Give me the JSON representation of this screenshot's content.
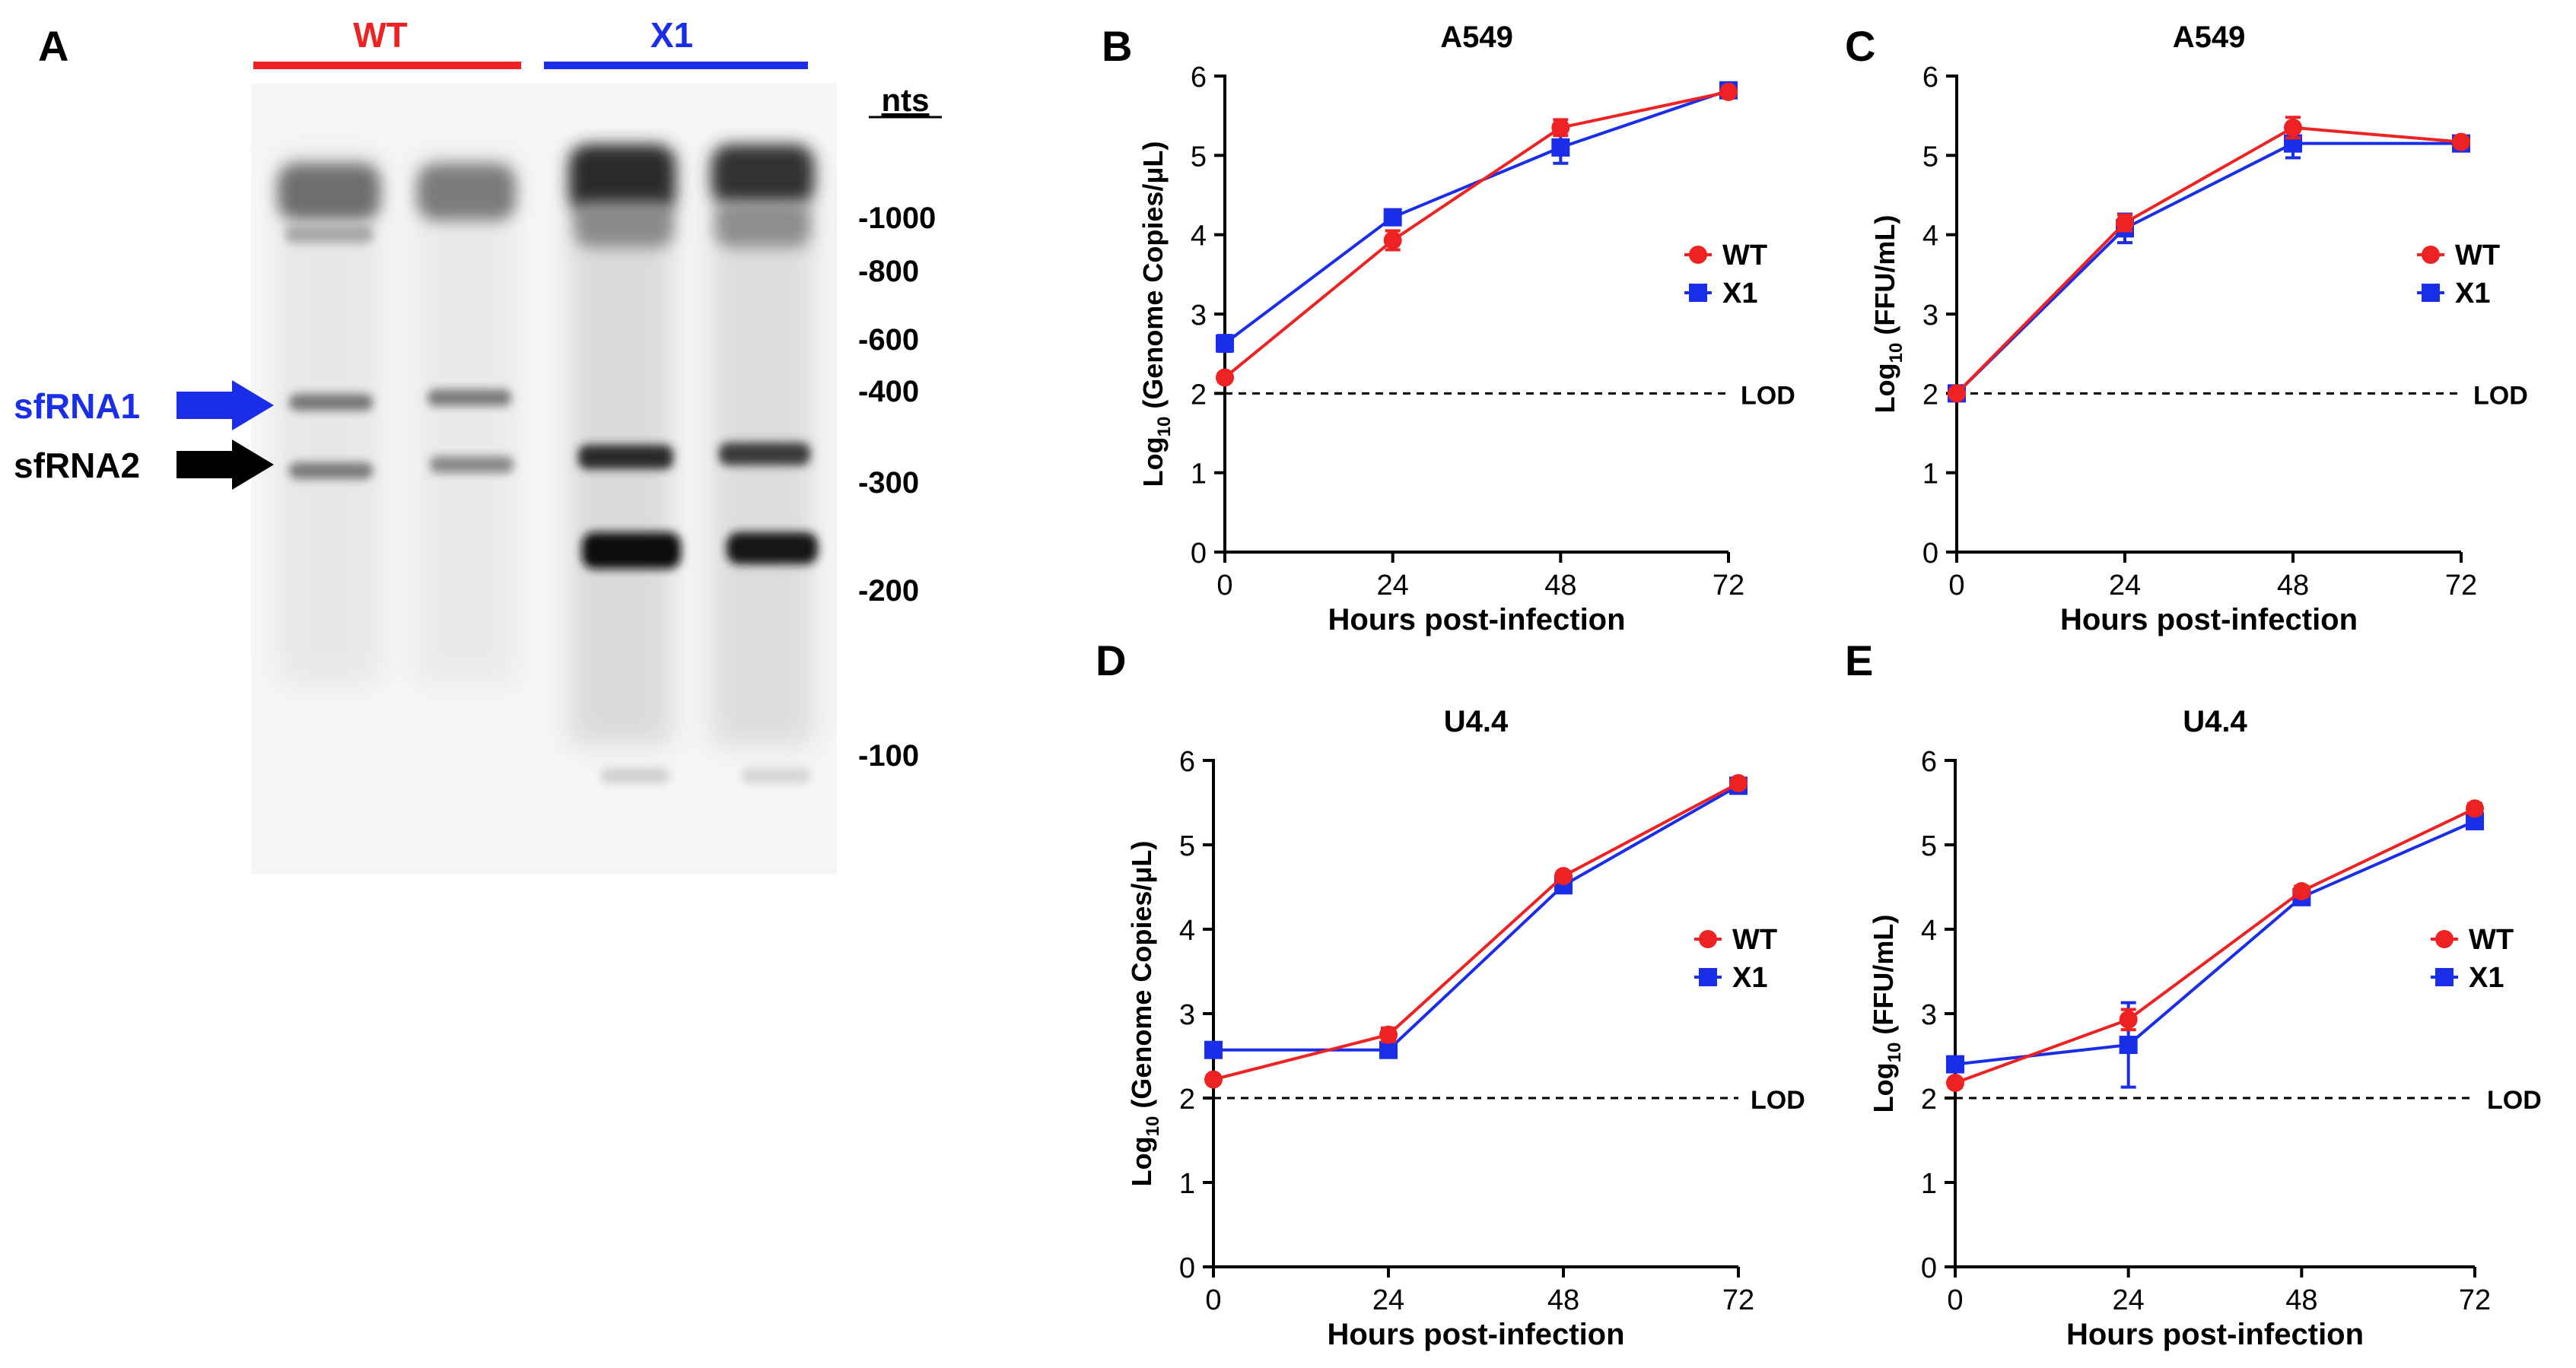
{
  "blot": {
    "panel_letter": "A",
    "group_labels": [
      {
        "text": "WT",
        "color": "#ee2222"
      },
      {
        "text": "X1",
        "color": "#1a2de8"
      }
    ],
    "size_header": "nts",
    "size_markers": [
      "-1000",
      "-800",
      "-600",
      "-400",
      "-300",
      "-200",
      "-100"
    ],
    "band_labels": [
      {
        "text": "sfRNA1",
        "color": "#1a2de8"
      },
      {
        "text": "sfRNA2",
        "color": "#000000"
      }
    ]
  },
  "chart_data": [
    {
      "panel_letter": "B",
      "type": "line",
      "title": "A549",
      "xlabel": "Hours post-infection",
      "ylabel_prefix": "Log",
      "ylabel_sub": "10",
      "ylabel_suffix": " (Genome Copies/μL)",
      "x": [
        0,
        24,
        48,
        72
      ],
      "xticks": [
        "0",
        "24",
        "48",
        "72"
      ],
      "yticks": [
        "0",
        "1",
        "2",
        "3",
        "4",
        "5",
        "6"
      ],
      "ylim": [
        0,
        6
      ],
      "lod": 2,
      "lod_label": "LOD",
      "legend_position": "right",
      "series": [
        {
          "name": "WT",
          "color": "#ee2222",
          "marker": "circle",
          "values": [
            2.2,
            3.93,
            5.35,
            5.8
          ],
          "errors": [
            0.05,
            0.12,
            0.1,
            0.04
          ]
        },
        {
          "name": "X1",
          "color": "#1a2de8",
          "marker": "square",
          "values": [
            2.63,
            4.22,
            5.1,
            5.82
          ],
          "errors": [
            0.1,
            0.06,
            0.2,
            0.06
          ]
        }
      ]
    },
    {
      "panel_letter": "C",
      "type": "line",
      "title": "A549",
      "xlabel": "Hours post-infection",
      "ylabel_prefix": "Log",
      "ylabel_sub": "10",
      "ylabel_suffix": " (FFU/mL)",
      "x": [
        0,
        24,
        48,
        72
      ],
      "xticks": [
        "0",
        "24",
        "48",
        "72"
      ],
      "yticks": [
        "0",
        "1",
        "2",
        "3",
        "4",
        "5",
        "6"
      ],
      "ylim": [
        0,
        6
      ],
      "lod": 2,
      "lod_label": "LOD",
      "legend_position": "right",
      "series": [
        {
          "name": "WT",
          "color": "#ee2222",
          "marker": "circle",
          "values": [
            2.0,
            4.15,
            5.35,
            5.17
          ],
          "errors": [
            0.02,
            0.1,
            0.13,
            0.05
          ]
        },
        {
          "name": "X1",
          "color": "#1a2de8",
          "marker": "square",
          "values": [
            2.0,
            4.08,
            5.15,
            5.15
          ],
          "errors": [
            0.02,
            0.18,
            0.18,
            0.05
          ]
        }
      ]
    },
    {
      "panel_letter": "D",
      "type": "line",
      "title": "U4.4",
      "xlabel": "Hours post-infection",
      "ylabel_prefix": "Log",
      "ylabel_sub": "10",
      "ylabel_suffix": " (Genome Copies/μL)",
      "x": [
        0,
        24,
        48,
        72
      ],
      "xticks": [
        "0",
        "24",
        "48",
        "72"
      ],
      "yticks": [
        "0",
        "1",
        "2",
        "3",
        "4",
        "5",
        "6"
      ],
      "ylim": [
        0,
        6
      ],
      "lod": 2,
      "lod_label": "LOD",
      "legend_position": "right",
      "series": [
        {
          "name": "WT",
          "color": "#ee2222",
          "marker": "circle",
          "values": [
            2.22,
            2.75,
            4.63,
            5.73
          ],
          "errors": [
            0.05,
            0.08,
            0.05,
            0.05
          ]
        },
        {
          "name": "X1",
          "color": "#1a2de8",
          "marker": "square",
          "values": [
            2.57,
            2.57,
            4.52,
            5.7
          ],
          "errors": [
            0.06,
            0.06,
            0.06,
            0.06
          ]
        }
      ]
    },
    {
      "panel_letter": "E",
      "type": "line",
      "title": "U4.4",
      "xlabel": "Hours post-infection",
      "ylabel_prefix": "Log",
      "ylabel_sub": "10",
      "ylabel_suffix": " (FFU/mL)",
      "x": [
        0,
        24,
        48,
        72
      ],
      "xticks": [
        "0",
        "24",
        "48",
        "72"
      ],
      "yticks": [
        "0",
        "1",
        "2",
        "3",
        "4",
        "5",
        "6"
      ],
      "ylim": [
        0,
        6
      ],
      "lod": 2,
      "lod_label": "LOD",
      "legend_position": "right",
      "series": [
        {
          "name": "WT",
          "color": "#ee2222",
          "marker": "circle",
          "values": [
            2.18,
            2.93,
            4.45,
            5.43
          ],
          "errors": [
            0.05,
            0.12,
            0.06,
            0.06
          ]
        },
        {
          "name": "X1",
          "color": "#1a2de8",
          "marker": "square",
          "values": [
            2.4,
            2.63,
            4.38,
            5.28
          ],
          "errors": [
            0.08,
            0.5,
            0.06,
            0.06
          ]
        }
      ]
    }
  ]
}
